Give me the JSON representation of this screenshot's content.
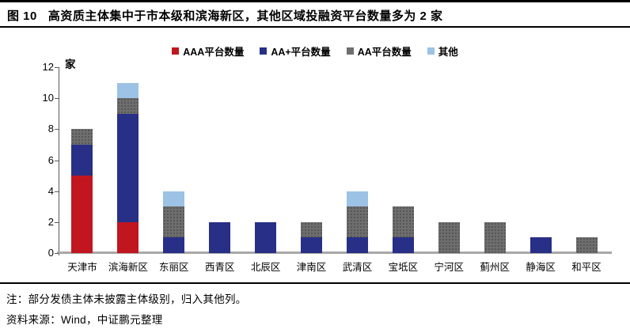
{
  "header": {
    "fig_label": "图 10",
    "title": "高资质主体集中于市本级和滨海新区，其他区域投融资平台数量多为 2 家"
  },
  "chart_data": {
    "type": "bar",
    "stacked": true,
    "title": "高资质主体集中于市本级和滨海新区，其他区域投融资平台数量多为 2 家",
    "unit_label": "家",
    "xlabel": "",
    "ylabel": "家",
    "ylim": [
      0,
      12
    ],
    "yticks": [
      0,
      2,
      4,
      6,
      8,
      10,
      12
    ],
    "grid": false,
    "legend_position": "top",
    "categories": [
      "天津市",
      "滨海新区",
      "东丽区",
      "西青区",
      "北辰区",
      "津南区",
      "武清区",
      "宝坻区",
      "宁河区",
      "蓟州区",
      "静海区",
      "和平区"
    ],
    "series": [
      {
        "name": "AAA平台数量",
        "color": "#c1161f",
        "pattern": "solid",
        "values": [
          5,
          2,
          0,
          0,
          0,
          0,
          0,
          0,
          0,
          0,
          0,
          0
        ]
      },
      {
        "name": "AA+平台数量",
        "color": "#272f87",
        "pattern": "solid",
        "values": [
          2,
          7,
          1,
          2,
          2,
          1,
          1,
          1,
          0,
          0,
          1,
          0
        ]
      },
      {
        "name": "AA平台数量",
        "color": "#6e6e6e",
        "pattern": "dots",
        "values": [
          1,
          1,
          2,
          0,
          0,
          1,
          2,
          2,
          2,
          2,
          0,
          1
        ]
      },
      {
        "name": "其他",
        "color": "#9cc2e5",
        "pattern": "solid",
        "values": [
          0,
          1,
          1,
          0,
          0,
          0,
          1,
          0,
          0,
          0,
          0,
          0
        ]
      }
    ],
    "totals": [
      8,
      11,
      4,
      2,
      2,
      2,
      4,
      3,
      2,
      2,
      1,
      1
    ]
  },
  "notes": {
    "note": "注：部分发债主体未披露主体级别，归入其他列。",
    "source": "资料来源：Wind，中证鹏元整理"
  }
}
